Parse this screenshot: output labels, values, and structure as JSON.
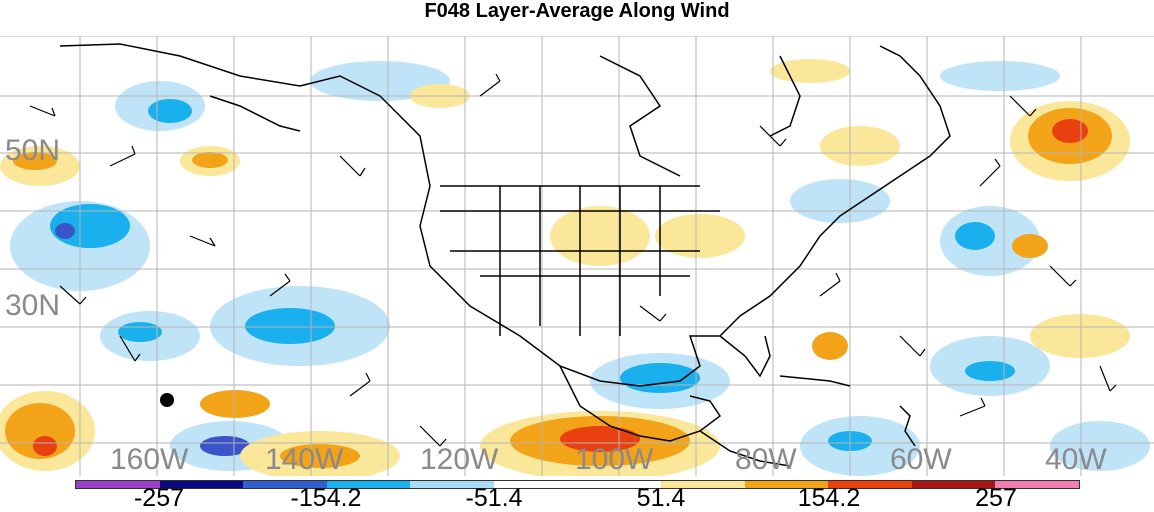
{
  "title": "F048 Layer-Average Along Wind",
  "lat_labels": [
    "50N",
    "30N"
  ],
  "lon_labels": [
    "160W",
    "140W",
    "120W",
    "100W",
    "80W",
    "60W",
    "40W"
  ],
  "colorbar": {
    "colors": [
      "#9a3fc8",
      "#0a0a80",
      "#2f5fd0",
      "#1ab0ee",
      "#a8dbf5",
      "#ffffff",
      "#ffffff",
      "#fbe79a",
      "#f2a318",
      "#e8400e",
      "#a81515",
      "#f07fb0"
    ],
    "labels": [
      "-257",
      "-154.2",
      "-51.4",
      "51.4",
      "154.2",
      "257"
    ]
  },
  "legend_colors": {
    "light_blue": "#bfe4f7",
    "mid_blue": "#1ab0ee",
    "dark_blue": "#3a55c8",
    "light_orange": "#fbe79a",
    "orange": "#f2a318",
    "red_orange": "#e8400e"
  }
}
